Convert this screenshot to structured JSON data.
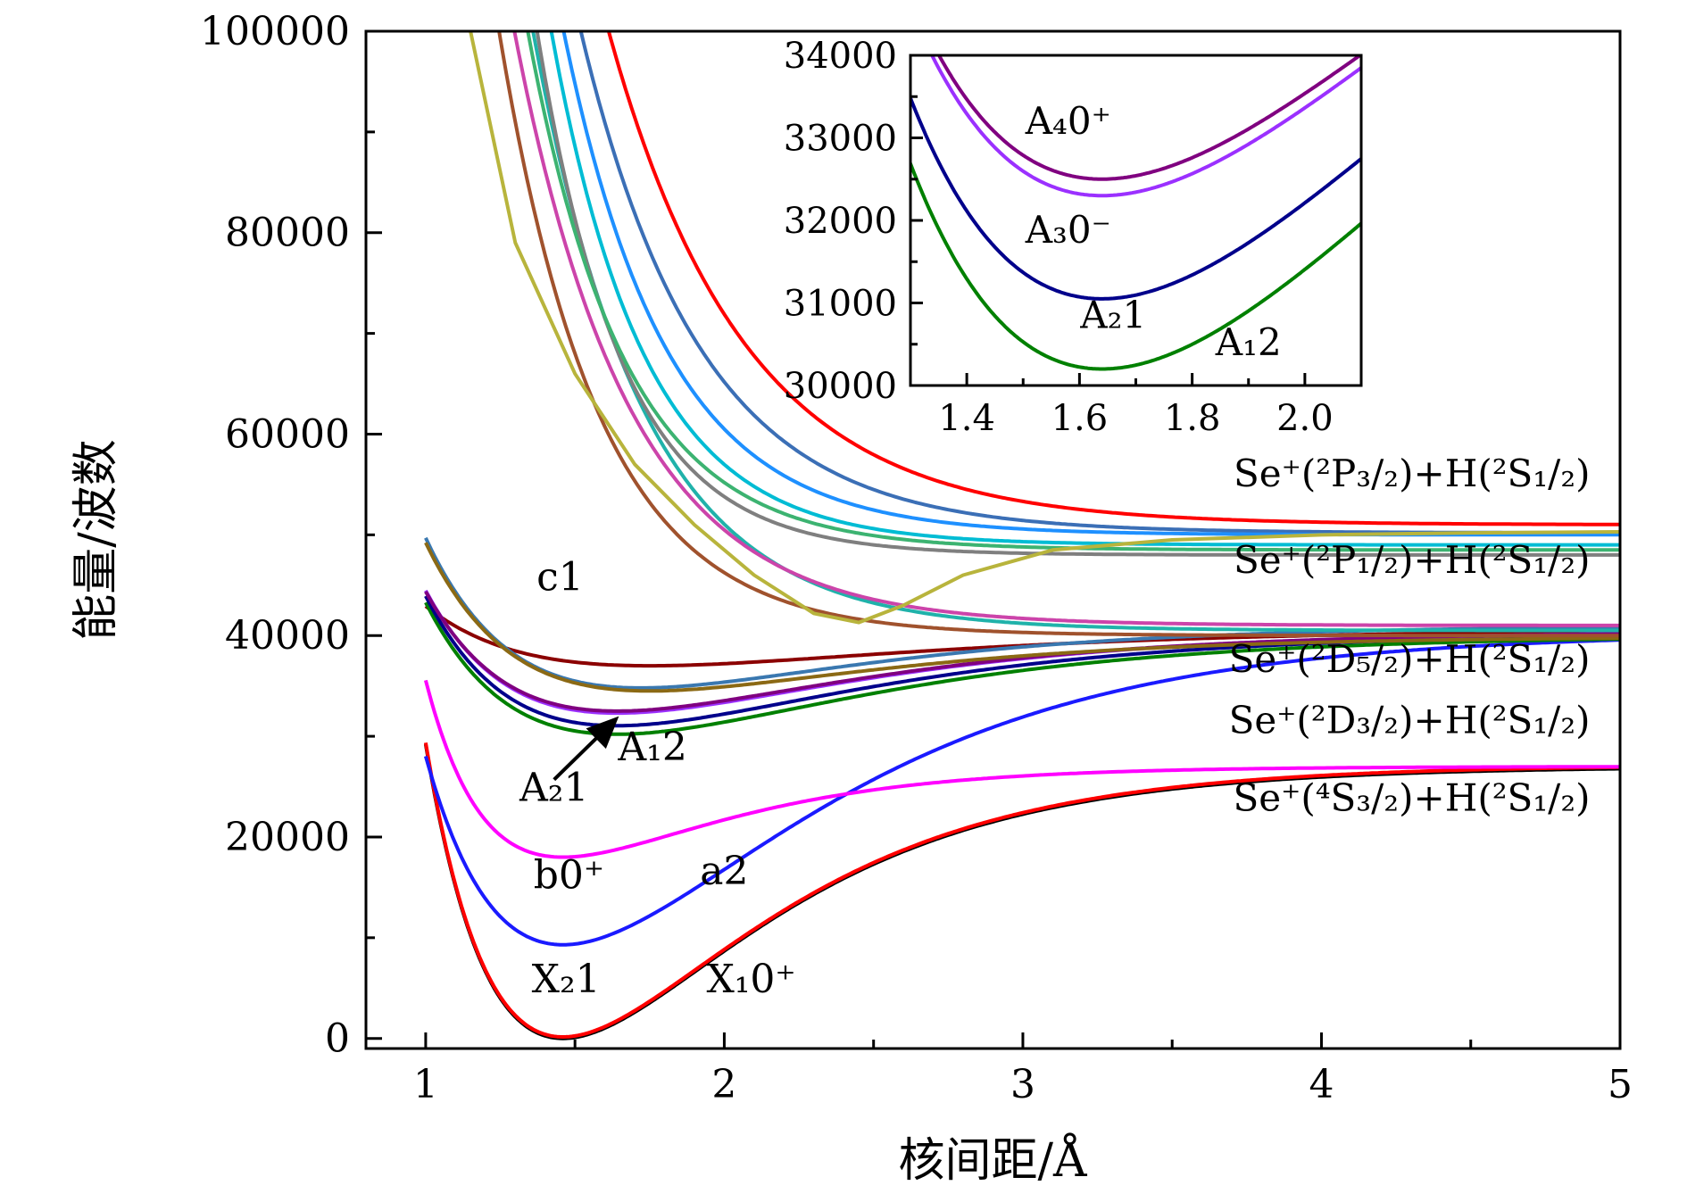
{
  "chart_data": {
    "type": "line",
    "xlabel": "核间距/Å",
    "ylabel": "能量/波数",
    "xlim": [
      0.8,
      5
    ],
    "ylim": [
      -1000,
      100000
    ],
    "xticks": [
      "1",
      "2",
      "3",
      "4",
      "5"
    ],
    "yticks": [
      "0",
      "20000",
      "40000",
      "60000",
      "80000",
      "100000"
    ],
    "series": [
      {
        "name": "X₁0⁺",
        "color": "#000000",
        "shape": "morse",
        "De": 27000,
        "re": 1.46,
        "a": 1.55,
        "T0": 0
      },
      {
        "name": "X₂1",
        "color": "#ff0000",
        "shape": "morse",
        "De": 27000,
        "re": 1.46,
        "a": 1.55,
        "T0": 150
      },
      {
        "name": "a2",
        "color": "#1a1aff",
        "shape": "morse",
        "De": 31000,
        "re": 1.46,
        "a": 1.25,
        "T0": 9300
      },
      {
        "name": "b0⁺",
        "color": "#ff00ff",
        "shape": "morse",
        "De": 9000,
        "re": 1.46,
        "a": 1.9,
        "T0": 18000
      },
      {
        "name": "c1",
        "color": "#8b0000",
        "shape": "morse",
        "De": 3600,
        "re": 1.75,
        "a": 1.1,
        "T0": 37000
      },
      {
        "name": "A₁2",
        "color": "#008000",
        "shape": "morse",
        "De": 9800,
        "re": 1.64,
        "a": 1.2,
        "T0": 30200
      },
      {
        "name": "A₂1",
        "color": "#00008b",
        "shape": "morse",
        "De": 9200,
        "re": 1.64,
        "a": 1.22,
        "T0": 31050
      },
      {
        "name": "A₃0⁻",
        "color": "#9b30ff",
        "shape": "morse",
        "De": 8100,
        "re": 1.64,
        "a": 1.25,
        "T0": 32300
      },
      {
        "name": "A₄0⁺",
        "color": "#800080",
        "shape": "morse",
        "De": 7900,
        "re": 1.64,
        "a": 1.25,
        "T0": 32500
      },
      {
        "name": "",
        "color": "#3a78b0",
        "shape": "morse",
        "De": 6200,
        "re": 1.72,
        "a": 1.3,
        "T0": 34800
      },
      {
        "name": "",
        "color": "#8b6914",
        "shape": "morse",
        "De": 5400,
        "re": 1.75,
        "a": 1.3,
        "T0": 34500
      },
      {
        "name": "",
        "color": "#20b2aa",
        "shape": "repulsive",
        "Einf": 40500,
        "A": 80000,
        "b": 2.7,
        "r0": 1.25,
        "E0": 100000
      },
      {
        "name": "",
        "color": "#ff0000",
        "shape": "repulsive",
        "Einf": 51000,
        "A": 80000,
        "b": 2.2,
        "r0": 1.39,
        "E0": 100000
      },
      {
        "name": "",
        "color": "#3b6fb6",
        "shape": "repulsive",
        "Einf": 50200,
        "A": 80000,
        "b": 2.5,
        "r0": 1.33,
        "E0": 100000
      },
      {
        "name": "",
        "color": "#1e90ff",
        "shape": "repulsive",
        "Einf": 50000,
        "A": 80000,
        "b": 2.9,
        "r0": 1.3,
        "E0": 100000
      },
      {
        "name": "",
        "color": "#00bcd4",
        "shape": "repulsive",
        "Einf": 49000,
        "A": 80000,
        "b": 3.2,
        "r0": 1.28,
        "E0": 100000
      },
      {
        "name": "",
        "color": "#7f7f7f",
        "shape": "repulsive",
        "Einf": 48000,
        "A": 80000,
        "b": 3.5,
        "r0": 1.25,
        "E0": 100000
      },
      {
        "name": "",
        "color": "#3cb371",
        "shape": "repulsive",
        "Einf": 48500,
        "A": 80000,
        "b": 3.1,
        "r0": 1.2,
        "E0": 100000
      },
      {
        "name": "",
        "color": "#cc44aa",
        "shape": "repulsive",
        "Einf": 41000,
        "A": 80000,
        "b": 2.6,
        "r0": 1.18,
        "E0": 100000
      },
      {
        "name": "",
        "color": "#a0522d",
        "shape": "repulsive",
        "Einf": 40000,
        "A": 80000,
        "b": 3.0,
        "r0": 1.15,
        "E0": 100000
      },
      {
        "name": "",
        "color": "#b8b43c",
        "shape": "points",
        "x": [
          1.15,
          1.3,
          1.5,
          1.7,
          1.9,
          2.1,
          2.3,
          2.45,
          2.6,
          2.8,
          3.1,
          3.5,
          4.0,
          4.5,
          5.0
        ],
        "y": [
          100000,
          79000,
          66000,
          57000,
          51000,
          46000,
          42200,
          41300,
          43000,
          46000,
          48500,
          49500,
          50000,
          50200,
          50300
        ]
      }
    ],
    "labels": [
      {
        "text": "c1",
        "x": 1.45,
        "y": 44500
      },
      {
        "text": "A₁2",
        "x": 1.76,
        "y": 27600
      },
      {
        "text": "A₂1",
        "x": 1.43,
        "y": 23600
      },
      {
        "text": "b0⁺",
        "x": 1.48,
        "y": 14900
      },
      {
        "text": "a2",
        "x": 2.0,
        "y": 15300
      },
      {
        "text": "X₂1",
        "x": 1.47,
        "y": 4600
      },
      {
        "text": "X₁0⁺",
        "x": 2.09,
        "y": 4600
      }
    ],
    "asymptotes": [
      {
        "text": "Se⁺(²P₃/₂)+H(²S₁/₂)",
        "x": 4.9,
        "y": 54800
      },
      {
        "text": "Se⁺(²P₁/₂)+H(²S₁/₂)",
        "x": 4.9,
        "y": 46200
      },
      {
        "text": "Se⁺(²D₅/₂)+H(²S₁/₂)",
        "x": 4.9,
        "y": 36400
      },
      {
        "text": "Se⁺(²D₃/₂)+H(²S₁/₂)",
        "x": 4.9,
        "y": 30300
      },
      {
        "text": "Se⁺(⁴S₃/₂)+H(²S₁/₂)",
        "x": 4.9,
        "y": 22600
      }
    ],
    "arrow": {
      "from": [
        1.43,
        25700
      ],
      "to": [
        1.63,
        31500
      ]
    },
    "inset": {
      "xlim": [
        1.3,
        2.1
      ],
      "ylim": [
        30000,
        34000
      ],
      "xticks": [
        "1.4",
        "1.6",
        "1.8",
        "2.0"
      ],
      "yticks": [
        "30000",
        "31000",
        "32000",
        "33000",
        "34000"
      ],
      "series_indices": [
        5,
        6,
        7,
        8
      ],
      "labels": [
        {
          "text": "A₄0⁺",
          "x": 1.58,
          "y": 33050
        },
        {
          "text": "A₃0⁻",
          "x": 1.58,
          "y": 31730
        },
        {
          "text": "A₂1",
          "x": 1.66,
          "y": 30700
        },
        {
          "text": "A₁2",
          "x": 1.9,
          "y": 30370
        }
      ]
    }
  }
}
